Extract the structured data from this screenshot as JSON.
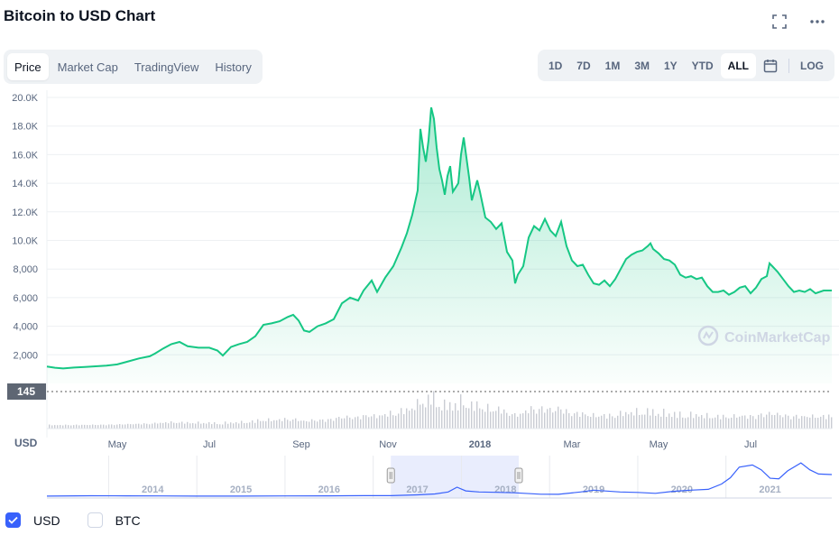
{
  "title": "Bitcoin to USD Chart",
  "colors": {
    "line": "#16c784",
    "fill_top": "#16c784",
    "navigator_line": "#3861fb",
    "navigator_window": "#e3e9fd",
    "volume_bar": "#c9ccd3",
    "watermark": "#cfd6e4"
  },
  "top_icons": [
    "fullscreen-icon",
    "more-icon"
  ],
  "tabs": [
    {
      "label": "Price",
      "active": true
    },
    {
      "label": "Market Cap",
      "active": false
    },
    {
      "label": "TradingView",
      "active": false
    },
    {
      "label": "History",
      "active": false
    }
  ],
  "ranges": [
    {
      "label": "1D",
      "active": false
    },
    {
      "label": "7D",
      "active": false
    },
    {
      "label": "1M",
      "active": false
    },
    {
      "label": "3M",
      "active": false
    },
    {
      "label": "1Y",
      "active": false
    },
    {
      "label": "YTD",
      "active": false
    },
    {
      "label": "ALL",
      "active": true
    }
  ],
  "log_label": "LOG",
  "watermark": "CoinMarketCap",
  "currency_label": "USD",
  "legend": [
    {
      "label": "USD",
      "checked": true
    },
    {
      "label": "BTC",
      "checked": false
    }
  ],
  "chart_data": {
    "type": "area",
    "title": "Bitcoin to USD Chart",
    "xlabel": "",
    "ylabel": "",
    "ylim": [
      0,
      20000
    ],
    "y_ticks": [
      "2,000",
      "4,000",
      "6,000",
      "8,000",
      "10.0K",
      "12.0K",
      "14.0K",
      "16.0K",
      "18.0K",
      "20.0K"
    ],
    "y_tick_values": [
      2000,
      4000,
      6000,
      8000,
      10000,
      12000,
      14000,
      16000,
      18000,
      20000
    ],
    "x_ticks": [
      "May",
      "Jul",
      "Sep",
      "Nov",
      "2018",
      "Mar",
      "May",
      "Jul"
    ],
    "x_tick_values": [
      2017.33,
      2017.5,
      2017.67,
      2017.83,
      2018.0,
      2018.17,
      2018.33,
      2018.5
    ],
    "xlim": [
      2017.2,
      2018.65
    ],
    "grid": true,
    "series": [
      {
        "values": [
          [
            2017.2,
            1180
          ],
          [
            2017.215,
            1100
          ],
          [
            2017.23,
            1050
          ],
          [
            2017.25,
            1110
          ],
          [
            2017.27,
            1150
          ],
          [
            2017.29,
            1200
          ],
          [
            2017.31,
            1240
          ],
          [
            2017.33,
            1330
          ],
          [
            2017.35,
            1540
          ],
          [
            2017.37,
            1750
          ],
          [
            2017.39,
            1900
          ],
          [
            2017.4,
            2100
          ],
          [
            2017.415,
            2450
          ],
          [
            2017.43,
            2750
          ],
          [
            2017.445,
            2900
          ],
          [
            2017.46,
            2600
          ],
          [
            2017.48,
            2500
          ],
          [
            2017.5,
            2500
          ],
          [
            2017.515,
            2300
          ],
          [
            2017.525,
            1950
          ],
          [
            2017.54,
            2550
          ],
          [
            2017.555,
            2750
          ],
          [
            2017.57,
            2900
          ],
          [
            2017.585,
            3300
          ],
          [
            2017.6,
            4100
          ],
          [
            2017.615,
            4200
          ],
          [
            2017.63,
            4350
          ],
          [
            2017.645,
            4650
          ],
          [
            2017.655,
            4800
          ],
          [
            2017.665,
            4400
          ],
          [
            2017.675,
            3700
          ],
          [
            2017.685,
            3600
          ],
          [
            2017.7,
            4000
          ],
          [
            2017.715,
            4200
          ],
          [
            2017.73,
            4500
          ],
          [
            2017.745,
            5600
          ],
          [
            2017.76,
            6000
          ],
          [
            2017.775,
            5800
          ],
          [
            2017.785,
            6500
          ],
          [
            2017.8,
            7200
          ],
          [
            2017.81,
            6400
          ],
          [
            2017.825,
            7400
          ],
          [
            2017.84,
            8200
          ],
          [
            2017.855,
            9500
          ],
          [
            2017.865,
            10500
          ],
          [
            2017.875,
            11800
          ],
          [
            2017.885,
            13500
          ],
          [
            2017.89,
            17800
          ],
          [
            2017.895,
            16500
          ],
          [
            2017.9,
            15500
          ],
          [
            2017.905,
            17000
          ],
          [
            2017.91,
            19300
          ],
          [
            2017.915,
            18500
          ],
          [
            2017.92,
            16500
          ],
          [
            2017.925,
            15000
          ],
          [
            2017.93,
            14200
          ],
          [
            2017.935,
            13200
          ],
          [
            2017.94,
            14500
          ],
          [
            2017.945,
            15200
          ],
          [
            2017.95,
            13400
          ],
          [
            2017.955,
            13700
          ],
          [
            2017.96,
            14000
          ],
          [
            2017.965,
            16000
          ],
          [
            2017.97,
            17200
          ],
          [
            2017.975,
            15800
          ],
          [
            2017.98,
            14400
          ],
          [
            2017.985,
            12800
          ],
          [
            2017.99,
            13500
          ],
          [
            2017.995,
            14200
          ],
          [
            2018.0,
            13400
          ],
          [
            2018.01,
            11600
          ],
          [
            2018.02,
            11300
          ],
          [
            2018.03,
            10800
          ],
          [
            2018.04,
            11200
          ],
          [
            2018.05,
            9200
          ],
          [
            2018.06,
            8600
          ],
          [
            2018.065,
            7000
          ],
          [
            2018.07,
            7600
          ],
          [
            2018.08,
            8200
          ],
          [
            2018.09,
            10200
          ],
          [
            2018.1,
            11000
          ],
          [
            2018.11,
            10700
          ],
          [
            2018.12,
            11500
          ],
          [
            2018.13,
            10700
          ],
          [
            2018.14,
            10300
          ],
          [
            2018.15,
            11300
          ],
          [
            2018.16,
            9600
          ],
          [
            2018.17,
            8600
          ],
          [
            2018.18,
            8200
          ],
          [
            2018.19,
            8300
          ],
          [
            2018.2,
            7600
          ],
          [
            2018.21,
            7000
          ],
          [
            2018.22,
            6900
          ],
          [
            2018.23,
            7200
          ],
          [
            2018.24,
            6800
          ],
          [
            2018.25,
            7300
          ],
          [
            2018.26,
            8000
          ],
          [
            2018.27,
            8700
          ],
          [
            2018.28,
            9000
          ],
          [
            2018.29,
            9200
          ],
          [
            2018.3,
            9300
          ],
          [
            2018.31,
            9600
          ],
          [
            2018.315,
            9800
          ],
          [
            2018.32,
            9400
          ],
          [
            2018.33,
            9100
          ],
          [
            2018.34,
            8700
          ],
          [
            2018.35,
            8600
          ],
          [
            2018.36,
            8300
          ],
          [
            2018.37,
            7600
          ],
          [
            2018.38,
            7400
          ],
          [
            2018.39,
            7500
          ],
          [
            2018.4,
            7300
          ],
          [
            2018.41,
            7400
          ],
          [
            2018.42,
            6800
          ],
          [
            2018.43,
            6400
          ],
          [
            2018.44,
            6400
          ],
          [
            2018.45,
            6500
          ],
          [
            2018.46,
            6200
          ],
          [
            2018.47,
            6400
          ],
          [
            2018.48,
            6700
          ],
          [
            2018.49,
            6800
          ],
          [
            2018.5,
            6300
          ],
          [
            2018.51,
            6700
          ],
          [
            2018.52,
            7300
          ],
          [
            2018.53,
            7500
          ],
          [
            2018.535,
            8400
          ],
          [
            2018.54,
            8200
          ],
          [
            2018.545,
            8000
          ],
          [
            2018.55,
            7800
          ],
          [
            2018.56,
            7300
          ],
          [
            2018.57,
            6800
          ],
          [
            2018.58,
            6400
          ],
          [
            2018.59,
            6500
          ],
          [
            2018.6,
            6400
          ],
          [
            2018.61,
            6600
          ],
          [
            2018.62,
            6300
          ],
          [
            2018.635,
            6500
          ],
          [
            2018.65,
            6500
          ]
        ]
      }
    ],
    "current_price_label": "145"
  },
  "navigator": {
    "x_ticks": [
      "2014",
      "2015",
      "2016",
      "2017",
      "2018",
      "2019",
      "2020",
      "2021"
    ],
    "xlim": [
      2013.3,
      2022.2
    ],
    "ylim": [
      0,
      70000
    ],
    "window": [
      2017.2,
      2018.65
    ],
    "values": [
      [
        2013.3,
        100
      ],
      [
        2013.8,
        900
      ],
      [
        2014.2,
        600
      ],
      [
        2014.6,
        500
      ],
      [
        2015.0,
        250
      ],
      [
        2015.5,
        250
      ],
      [
        2016.0,
        430
      ],
      [
        2016.5,
        650
      ],
      [
        2016.9,
        950
      ],
      [
        2017.2,
        1100
      ],
      [
        2017.5,
        2500
      ],
      [
        2017.7,
        4300
      ],
      [
        2017.85,
        8000
      ],
      [
        2017.95,
        17000
      ],
      [
        2018.05,
        10000
      ],
      [
        2018.2,
        8000
      ],
      [
        2018.4,
        7400
      ],
      [
        2018.6,
        6500
      ],
      [
        2018.9,
        3800
      ],
      [
        2019.1,
        3600
      ],
      [
        2019.35,
        8000
      ],
      [
        2019.5,
        11500
      ],
      [
        2019.8,
        8000
      ],
      [
        2020.0,
        7200
      ],
      [
        2020.2,
        5500
      ],
      [
        2020.4,
        9300
      ],
      [
        2020.6,
        11500
      ],
      [
        2020.8,
        13000
      ],
      [
        2020.95,
        23000
      ],
      [
        2021.05,
        35000
      ],
      [
        2021.15,
        55000
      ],
      [
        2021.3,
        59000
      ],
      [
        2021.4,
        50000
      ],
      [
        2021.5,
        34000
      ],
      [
        2021.6,
        33000
      ],
      [
        2021.7,
        48000
      ],
      [
        2021.85,
        63000
      ],
      [
        2021.95,
        50000
      ],
      [
        2022.05,
        42000
      ],
      [
        2022.2,
        41000
      ]
    ]
  }
}
